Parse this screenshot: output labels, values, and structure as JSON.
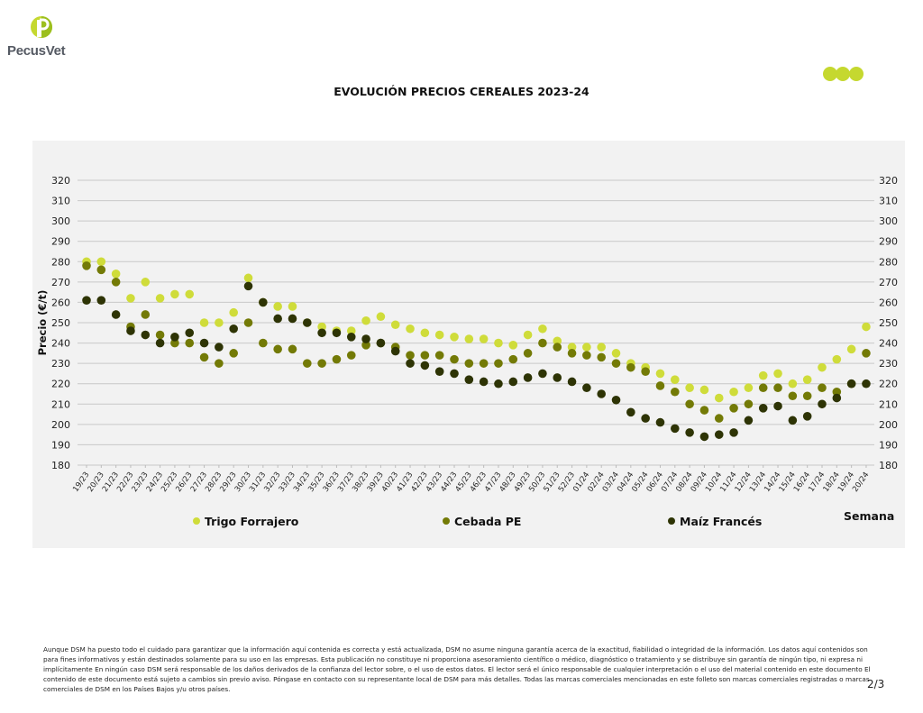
{
  "header": {
    "brand": "PecusVet",
    "title": "EVOLUCIÓN PRECIOS CEREALES 2023-24"
  },
  "colors": {
    "trigo": "#cfdc3a",
    "cebada": "#737a06",
    "maiz": "#2e3405",
    "brand_green": "#c5d82f"
  },
  "chart_data": {
    "type": "scatter",
    "title": "EVOLUCIÓN PRECIOS CEREALES 2023-24",
    "xlabel": "Semana",
    "ylabel": "Precio (€/t)",
    "ylim": [
      180,
      320
    ],
    "yticks": [
      180,
      190,
      200,
      210,
      220,
      230,
      240,
      250,
      260,
      270,
      280,
      290,
      300,
      310,
      320
    ],
    "grid": true,
    "legend_position": "bottom",
    "categories": [
      "19/23",
      "20/23",
      "21/23",
      "22/23",
      "23/23",
      "24/23",
      "25/23",
      "26/23",
      "27/23",
      "28/23",
      "29/23",
      "30/23",
      "31/23",
      "32/23",
      "33/23",
      "34/23",
      "35/23",
      "36/23",
      "37/23",
      "38/23",
      "39/23",
      "40/23",
      "41/23",
      "42/23",
      "43/23",
      "44/23",
      "45/23",
      "46/23",
      "47/23",
      "48/23",
      "49/23",
      "50/23",
      "51/23",
      "52/23",
      "01/24",
      "02/24",
      "03/24",
      "04/24",
      "05/24",
      "06/24",
      "07/24",
      "08/24",
      "09/24",
      "10/24",
      "11/24",
      "12/24",
      "13/24",
      "14/24",
      "15/24",
      "16/24",
      "17/24",
      "18/24",
      "19/24",
      "20/24"
    ],
    "series": [
      {
        "name": "Trigo Forrajero",
        "color_key": "trigo",
        "values": [
          280,
          280,
          274,
          262,
          270,
          262,
          264,
          264,
          250,
          250,
          255,
          272,
          260,
          258,
          258,
          250,
          248,
          246,
          246,
          251,
          253,
          249,
          247,
          245,
          244,
          243,
          242,
          242,
          240,
          239,
          244,
          247,
          241,
          238,
          238,
          238,
          235,
          230,
          228,
          225,
          222,
          218,
          217,
          213,
          216,
          218,
          224,
          225,
          220,
          222,
          228,
          232,
          237,
          248
        ]
      },
      {
        "name": "Cebada PE",
        "color_key": "cebada",
        "values": [
          278,
          276,
          270,
          248,
          254,
          244,
          240,
          240,
          233,
          230,
          235,
          250,
          240,
          237,
          237,
          230,
          230,
          232,
          234,
          239,
          240,
          238,
          234,
          234,
          234,
          232,
          230,
          230,
          230,
          232,
          235,
          240,
          238,
          235,
          234,
          233,
          230,
          228,
          226,
          219,
          216,
          210,
          207,
          203,
          208,
          210,
          218,
          218,
          214,
          214,
          218,
          216,
          220,
          235
        ]
      },
      {
        "name": "Maíz Francés",
        "color_key": "maiz",
        "values": [
          261,
          261,
          254,
          246,
          244,
          240,
          243,
          245,
          240,
          238,
          247,
          268,
          260,
          252,
          252,
          250,
          245,
          245,
          243,
          242,
          240,
          236,
          230,
          229,
          226,
          225,
          222,
          221,
          220,
          221,
          223,
          225,
          223,
          221,
          218,
          215,
          212,
          206,
          203,
          201,
          198,
          196,
          194,
          195,
          196,
          202,
          208,
          209,
          202,
          204,
          210,
          213,
          220,
          220
        ]
      }
    ]
  },
  "footer": {
    "disclaimer": "Aunque DSM ha puesto todo el cuidado para garantizar que la información aquí contenida es correcta y está actualizada, DSM no asume ninguna garantía acerca de la exactitud, fiabilidad o integridad de la información. Los datos aquí contenidos son para fines informativos y están destinados solamente para su uso en las empresas. Esta publicación no constituye ni proporciona asesoramiento científico o médico, diagnóstico o tratamiento y se distribuye sin garantía de ningún tipo, ni expresa ni implícitamente En ningún caso DSM será responsable de los daños derivados de la confianza del lector sobre, o el uso de estos datos. El lector será el único responsable de cualquier interpretación o el uso del material contenido en este documento El contenido de este documento está sujeto a cambios sin previo aviso. Póngase en contacto con su representante local de DSM para más detalles. Todas las marcas comerciales mencionadas en este folleto son marcas comerciales registradas o marcas comerciales de DSM en los Países Bajos y/u otros países.",
    "page": "2/3"
  }
}
